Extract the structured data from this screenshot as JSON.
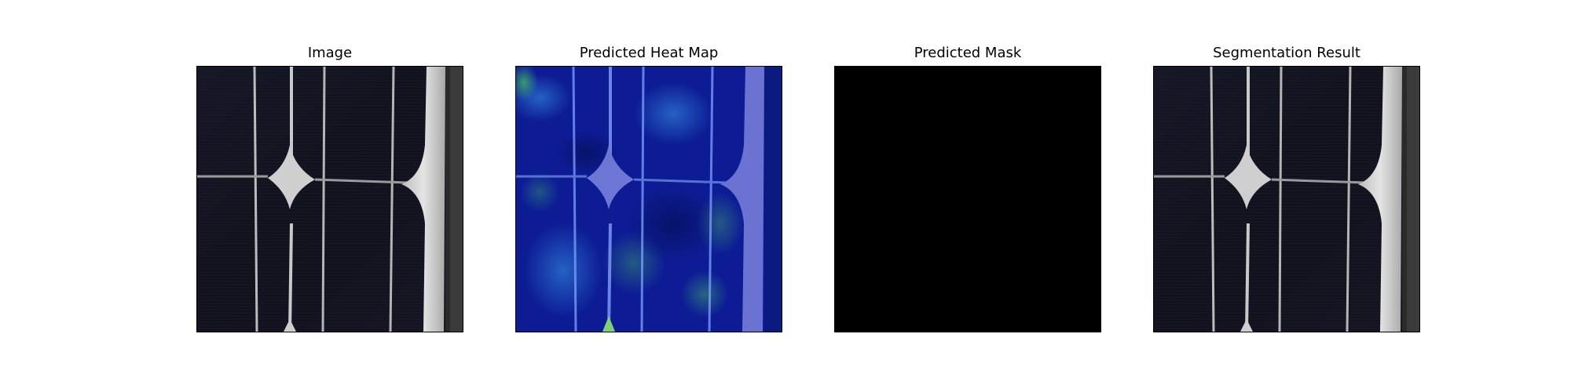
{
  "figure": {
    "panels": [
      {
        "title": "Image"
      },
      {
        "title": "Predicted Heat Map"
      },
      {
        "title": "Predicted Mask"
      },
      {
        "title": "Segmentation Result"
      }
    ]
  },
  "colors": {
    "cell_dark": "#12131f",
    "busbar": "#c9c9c9",
    "frame_edge": "#d8d8d8",
    "heatmap_base": "#0b1a8f",
    "heatmap_hot": "#2fa36b",
    "mask": "#000000"
  }
}
